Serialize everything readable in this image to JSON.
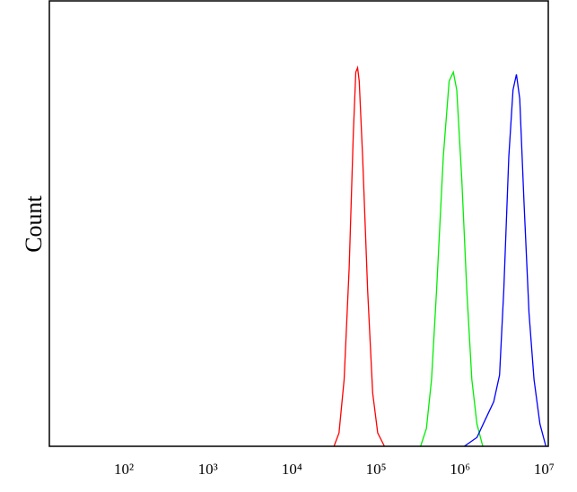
{
  "chart_data": {
    "type": "line",
    "ylabel": "Count",
    "x_scale": "log",
    "xlim": [
      13,
      11200000
    ],
    "ylim": [
      0,
      100
    ],
    "xticks": [
      {
        "value": 100,
        "label": "10²"
      },
      {
        "value": 1000,
        "label": "10³"
      },
      {
        "value": 10000,
        "label": "10⁴"
      },
      {
        "value": 100000,
        "label": "10⁵"
      },
      {
        "value": 1000000,
        "label": "10⁶"
      },
      {
        "value": 10000000,
        "label": "10⁷"
      }
    ],
    "series": [
      {
        "color": "#ff0000",
        "x": [
          31600,
          36300,
          41700,
          47900,
          53700,
          57500,
          60300,
          63100,
          69200,
          79400,
          91200,
          104700,
          125900
        ],
        "values": [
          0,
          3,
          15,
          40,
          70,
          84,
          85,
          82,
          65,
          35,
          12,
          3,
          0
        ]
      },
      {
        "color": "#00ee00",
        "x": [
          339000,
          398000,
          457000,
          525000,
          631000,
          741000,
          832000,
          912000,
          1047000,
          1202000,
          1380000,
          1585000,
          1862000
        ],
        "values": [
          0,
          4,
          15,
          35,
          65,
          82,
          84,
          80,
          60,
          35,
          15,
          5,
          0
        ]
      },
      {
        "color": "#0000ff",
        "x": [
          1122000,
          1585000,
          1995000,
          2512000,
          2951000,
          3311000,
          3802000,
          4266000,
          4677000,
          5129000,
          5754000,
          6607000,
          7586000,
          8913000,
          10470000
        ],
        "values": [
          0,
          2,
          6,
          10,
          16,
          35,
          65,
          80,
          83.5,
          78,
          55,
          30,
          15,
          5,
          0
        ]
      }
    ]
  }
}
